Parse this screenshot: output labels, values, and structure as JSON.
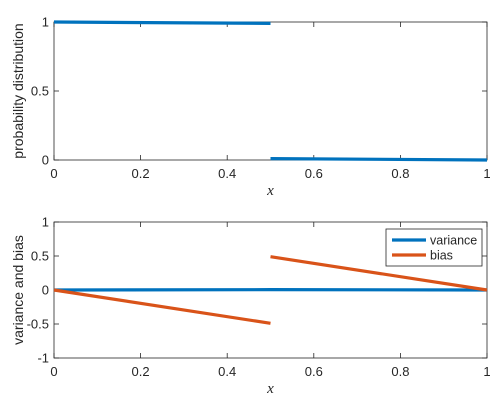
{
  "chart_data": [
    {
      "type": "line",
      "xlabel": "x",
      "ylabel": "probability distribution",
      "xlim": [
        0,
        1
      ],
      "ylim": [
        0,
        1
      ],
      "xticks": [
        "0",
        "0.2",
        "0.4",
        "0.6",
        "0.8",
        "1"
      ],
      "yticks": [
        "0",
        "0.5",
        "1"
      ],
      "grid": false,
      "series": [
        {
          "color": "#0072BD",
          "segments": [
            {
              "x": [
                0,
                0.5
              ],
              "y": [
                1.0,
                0.99
              ]
            },
            {
              "x": [
                0.5,
                1
              ],
              "y": [
                0.01,
                0.0
              ]
            }
          ]
        }
      ]
    },
    {
      "type": "line",
      "xlabel": "x",
      "ylabel": "variance and bias",
      "xlim": [
        0,
        1
      ],
      "ylim": [
        -1,
        1
      ],
      "xticks": [
        "0",
        "0.2",
        "0.4",
        "0.6",
        "0.8",
        "1"
      ],
      "yticks": [
        "-1",
        "-0.5",
        "0",
        "0.5",
        "1"
      ],
      "grid": false,
      "legend_position": "top-right",
      "series": [
        {
          "name": "variance",
          "color": "#0072BD",
          "segments": [
            {
              "x": [
                0,
                0.5
              ],
              "y": [
                0.0,
                0.005
              ]
            },
            {
              "x": [
                0.5,
                1
              ],
              "y": [
                0.005,
                0.0
              ]
            }
          ]
        },
        {
          "name": "bias",
          "color": "#D95319",
          "segments": [
            {
              "x": [
                0,
                0.5
              ],
              "y": [
                0.0,
                -0.49
              ]
            },
            {
              "x": [
                0.5,
                1
              ],
              "y": [
                0.49,
                0.0
              ]
            }
          ]
        }
      ]
    }
  ]
}
